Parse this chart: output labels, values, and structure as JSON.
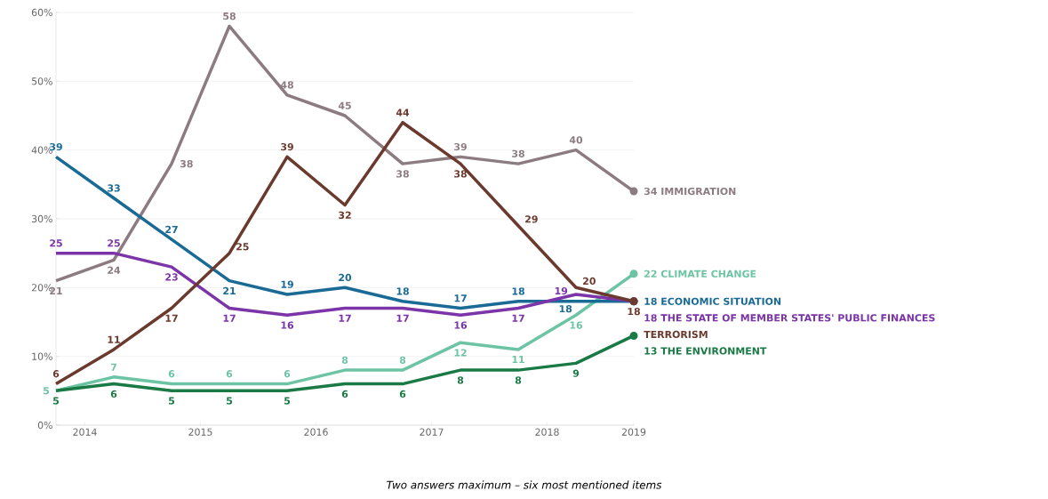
{
  "chart_data": {
    "type": "line",
    "x": [
      2014,
      2014.5,
      2015,
      2015.5,
      2016,
      2016.5,
      2017,
      2017.5,
      2018,
      2018.5,
      2019
    ],
    "xlim": [
      2014,
      2019
    ],
    "ylim": [
      0,
      60
    ],
    "xticks": [
      {
        "value": 2014.25,
        "label": "2014"
      },
      {
        "value": 2015.25,
        "label": "2015"
      },
      {
        "value": 2016.25,
        "label": "2016"
      },
      {
        "value": 2017.25,
        "label": "2017"
      },
      {
        "value": 2018.25,
        "label": "2018"
      },
      {
        "value": 2019,
        "label": "2019"
      }
    ],
    "yticks": [
      {
        "value": 0,
        "label": "0%"
      },
      {
        "value": 10,
        "label": "10%"
      },
      {
        "value": 20,
        "label": "20%"
      },
      {
        "value": 30,
        "label": "30%"
      },
      {
        "value": 40,
        "label": "40%"
      },
      {
        "value": 50,
        "label": "50%"
      },
      {
        "value": 60,
        "label": "60%"
      }
    ],
    "grid": "y",
    "data_labels": true,
    "series": [
      {
        "name": "IMMIGRATION",
        "color": "#8c7b80",
        "values": [
          21,
          24,
          38,
          58,
          48,
          45,
          38,
          39,
          38,
          40,
          34
        ]
      },
      {
        "name": "CLIMATE CHANGE",
        "color": "#6cc4a4",
        "values": [
          5,
          7,
          6,
          6,
          6,
          8,
          8,
          12,
          11,
          16,
          22
        ]
      },
      {
        "name": "ECONOMIC SITUATION",
        "color": "#1a6a96",
        "values": [
          39,
          33,
          27,
          21,
          19,
          20,
          18,
          17,
          18,
          18,
          18
        ]
      },
      {
        "name": "THE STATE OF MEMBER STATES' PUBLIC FINANCES",
        "color": "#7b35a8",
        "values": [
          25,
          25,
          23,
          17,
          16,
          17,
          17,
          16,
          17,
          19,
          18
        ]
      },
      {
        "name": "TERRORISM",
        "color": "#6b3a2e",
        "values": [
          6,
          11,
          17,
          25,
          39,
          32,
          44,
          38,
          29,
          20,
          18
        ]
      },
      {
        "name": "THE ENVIRONMENT",
        "color": "#1a7a45",
        "values": [
          5,
          6,
          5,
          5,
          5,
          6,
          6,
          8,
          8,
          9,
          13
        ]
      }
    ],
    "annotations": [
      "Two answers maximum – six most mentioned items"
    ]
  }
}
